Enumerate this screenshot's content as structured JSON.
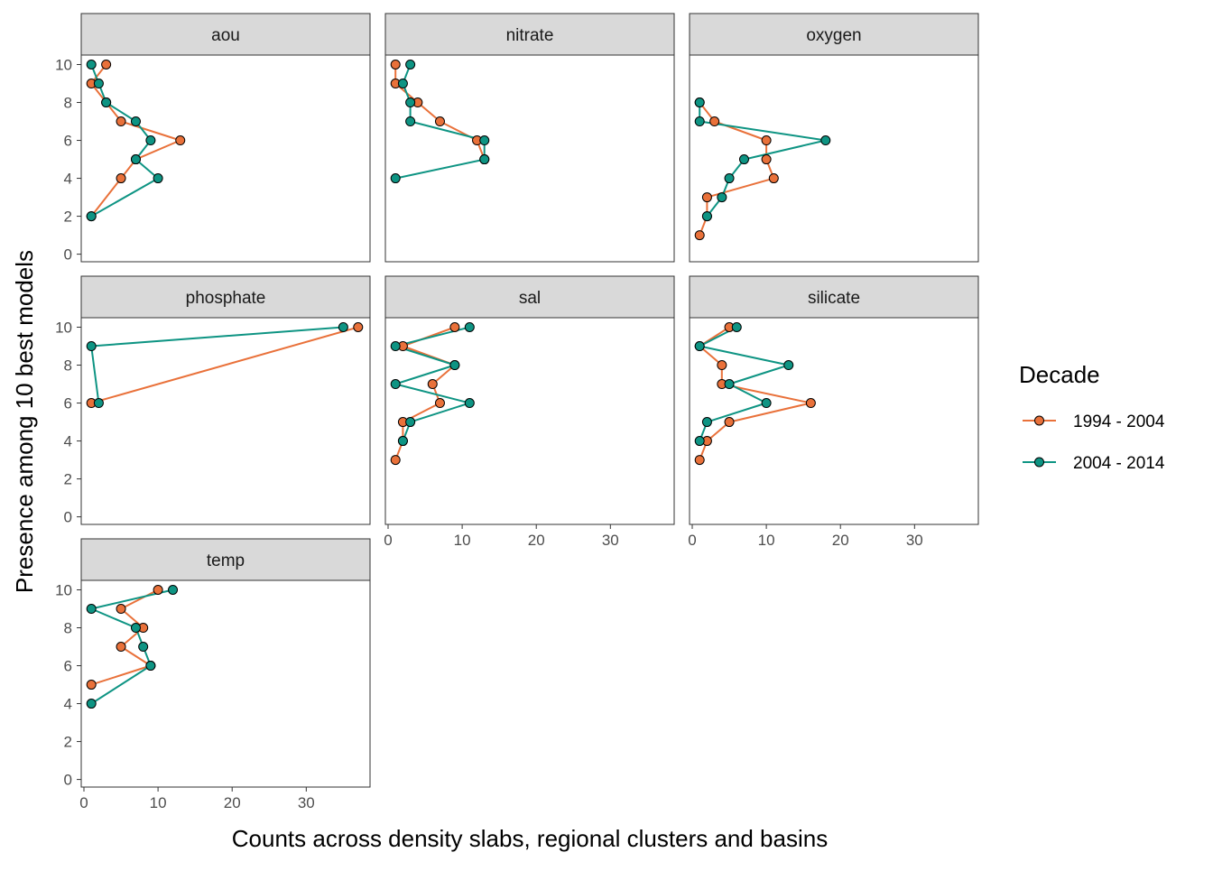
{
  "chart_data": {
    "type": "line",
    "facet_layout": "3 columns",
    "xlabel": "Counts across density slabs, regional clusters and basins",
    "ylabel": "Presence among 10 best models",
    "xlim": [
      0,
      38
    ],
    "ylim": [
      0,
      10
    ],
    "x_ticks": [
      0,
      10,
      20,
      30
    ],
    "y_ticks": [
      0,
      2,
      4,
      6,
      8,
      10
    ],
    "x_tick_labels": [
      "0",
      "10",
      "20",
      "30"
    ],
    "y_tick_labels": [
      "0",
      "2",
      "4",
      "6",
      "8",
      "10"
    ],
    "grid": false,
    "legend": {
      "title": "Decade",
      "position": "right",
      "entries": [
        {
          "label": "1994 - 2004",
          "color": "#E9713A"
        },
        {
          "label": "2004 - 2014",
          "color": "#0E9483"
        }
      ]
    },
    "panels": [
      {
        "label": "aou",
        "series": [
          {
            "name": "1994 - 2004",
            "points": [
              [
                3,
                10
              ],
              [
                1,
                9
              ],
              [
                3,
                8
              ],
              [
                5,
                7
              ],
              [
                13,
                6
              ],
              [
                7,
                5
              ],
              [
                5,
                4
              ],
              [
                1,
                2
              ]
            ]
          },
          {
            "name": "2004 - 2014",
            "points": [
              [
                1,
                10
              ],
              [
                2,
                9
              ],
              [
                3,
                8
              ],
              [
                7,
                7
              ],
              [
                9,
                6
              ],
              [
                7,
                5
              ],
              [
                10,
                4
              ],
              [
                1,
                2
              ]
            ]
          }
        ]
      },
      {
        "label": "nitrate",
        "series": [
          {
            "name": "1994 - 2004",
            "points": [
              [
                1,
                10
              ],
              [
                1,
                9
              ],
              [
                4,
                8
              ],
              [
                7,
                7
              ],
              [
                12,
                6
              ],
              [
                13,
                5
              ]
            ]
          },
          {
            "name": "2004 - 2014",
            "points": [
              [
                3,
                10
              ],
              [
                2,
                9
              ],
              [
                3,
                8
              ],
              [
                3,
                7
              ],
              [
                13,
                6
              ],
              [
                13,
                5
              ],
              [
                1,
                4
              ]
            ]
          }
        ]
      },
      {
        "label": "oxygen",
        "series": [
          {
            "name": "1994 - 2004",
            "points": [
              [
                1,
                8
              ],
              [
                3,
                7
              ],
              [
                10,
                6
              ],
              [
                10,
                5
              ],
              [
                11,
                4
              ],
              [
                2,
                3
              ],
              [
                2,
                2
              ],
              [
                1,
                1
              ]
            ]
          },
          {
            "name": "2004 - 2014",
            "points": [
              [
                1,
                8
              ],
              [
                1,
                7
              ],
              [
                18,
                6
              ],
              [
                7,
                5
              ],
              [
                5,
                4
              ],
              [
                4,
                3
              ],
              [
                2,
                2
              ]
            ]
          }
        ]
      },
      {
        "label": "phosphate",
        "series": [
          {
            "name": "1994 - 2004",
            "points": [
              [
                37,
                10
              ],
              [
                1,
                6
              ]
            ]
          },
          {
            "name": "2004 - 2014",
            "points": [
              [
                35,
                10
              ],
              [
                1,
                9
              ],
              [
                2,
                6
              ]
            ]
          }
        ]
      },
      {
        "label": "sal",
        "series": [
          {
            "name": "1994 - 2004",
            "points": [
              [
                9,
                10
              ],
              [
                2,
                9
              ],
              [
                9,
                8
              ],
              [
                6,
                7
              ],
              [
                7,
                6
              ],
              [
                2,
                5
              ],
              [
                2,
                4
              ],
              [
                1,
                3
              ]
            ]
          },
          {
            "name": "2004 - 2014",
            "points": [
              [
                11,
                10
              ],
              [
                1,
                9
              ],
              [
                9,
                8
              ],
              [
                1,
                7
              ],
              [
                11,
                6
              ],
              [
                3,
                5
              ],
              [
                2,
                4
              ]
            ]
          }
        ]
      },
      {
        "label": "silicate",
        "series": [
          {
            "name": "1994 - 2004",
            "points": [
              [
                5,
                10
              ],
              [
                1,
                9
              ],
              [
                4,
                8
              ],
              [
                4,
                7
              ],
              [
                16,
                6
              ],
              [
                5,
                5
              ],
              [
                2,
                4
              ],
              [
                1,
                3
              ]
            ]
          },
          {
            "name": "2004 - 2014",
            "points": [
              [
                6,
                10
              ],
              [
                1,
                9
              ],
              [
                13,
                8
              ],
              [
                5,
                7
              ],
              [
                10,
                6
              ],
              [
                2,
                5
              ],
              [
                1,
                4
              ]
            ]
          }
        ]
      },
      {
        "label": "temp",
        "series": [
          {
            "name": "1994 - 2004",
            "points": [
              [
                10,
                10
              ],
              [
                5,
                9
              ],
              [
                8,
                8
              ],
              [
                5,
                7
              ],
              [
                9,
                6
              ],
              [
                1,
                5
              ]
            ]
          },
          {
            "name": "2004 - 2014",
            "points": [
              [
                12,
                10
              ],
              [
                1,
                9
              ],
              [
                7,
                8
              ],
              [
                8,
                7
              ],
              [
                9,
                6
              ],
              [
                1,
                4
              ]
            ]
          }
        ]
      }
    ]
  }
}
